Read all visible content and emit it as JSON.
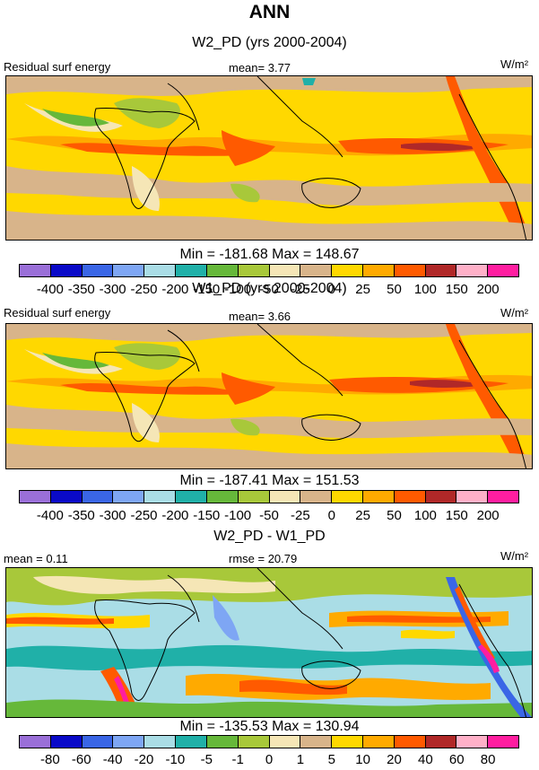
{
  "title": "ANN",
  "units": "W/m²",
  "colors": {
    "abs_scale": [
      "#9a6fd8",
      "#0a0ac8",
      "#3a66e6",
      "#7ea6f4",
      "#aadde6",
      "#20b0a8",
      "#66b83a",
      "#a8c83a",
      "#f5e6b6",
      "#d8b48a",
      "#ffd800",
      "#ffaa00",
      "#ff5a00",
      "#b02828",
      "#ffb0c8",
      "#ff1ea0"
    ],
    "diff_scale": [
      "#9a6fd8",
      "#0a0ac8",
      "#3a66e6",
      "#7ea6f4",
      "#aadde6",
      "#20b0a8",
      "#66b83a",
      "#a8c83a",
      "#f5e6b6",
      "#d8b48a",
      "#ffd800",
      "#ffaa00",
      "#ff5a00",
      "#b02828",
      "#ffb0c8",
      "#ff1ea0"
    ]
  },
  "panels": [
    {
      "subtitle": "W2_PD (yrs 2000-2004)",
      "left_label": "Residual surf energy",
      "center_label": "mean=   3.77",
      "minmax": "Min = -181.68 Max = 148.67",
      "ticks": [
        "-400",
        "-350",
        "-300",
        "-250",
        "-200",
        "-150",
        "-100",
        "-50",
        "-25",
        "0",
        "25",
        "50",
        "100",
        "150",
        "200"
      ]
    },
    {
      "subtitle": "W1_PD (yrs 2000-2004)",
      "left_label": "Residual surf energy",
      "center_label": "mean=   3.66",
      "minmax": "Min = -187.41 Max = 151.53",
      "ticks": [
        "-400",
        "-350",
        "-300",
        "-250",
        "-200",
        "-150",
        "-100",
        "-50",
        "-25",
        "0",
        "25",
        "50",
        "100",
        "150",
        "200"
      ]
    },
    {
      "subtitle": "W2_PD - W1_PD",
      "left_label": "mean =   0.11",
      "center_label": "rmse = 20.79",
      "minmax": "Min = -135.53 Max = 130.94",
      "ticks": [
        "-80",
        "-60",
        "-40",
        "-20",
        "-10",
        "-5",
        "-1",
        "0",
        "1",
        "5",
        "10",
        "20",
        "40",
        "60",
        "80"
      ]
    }
  ]
}
